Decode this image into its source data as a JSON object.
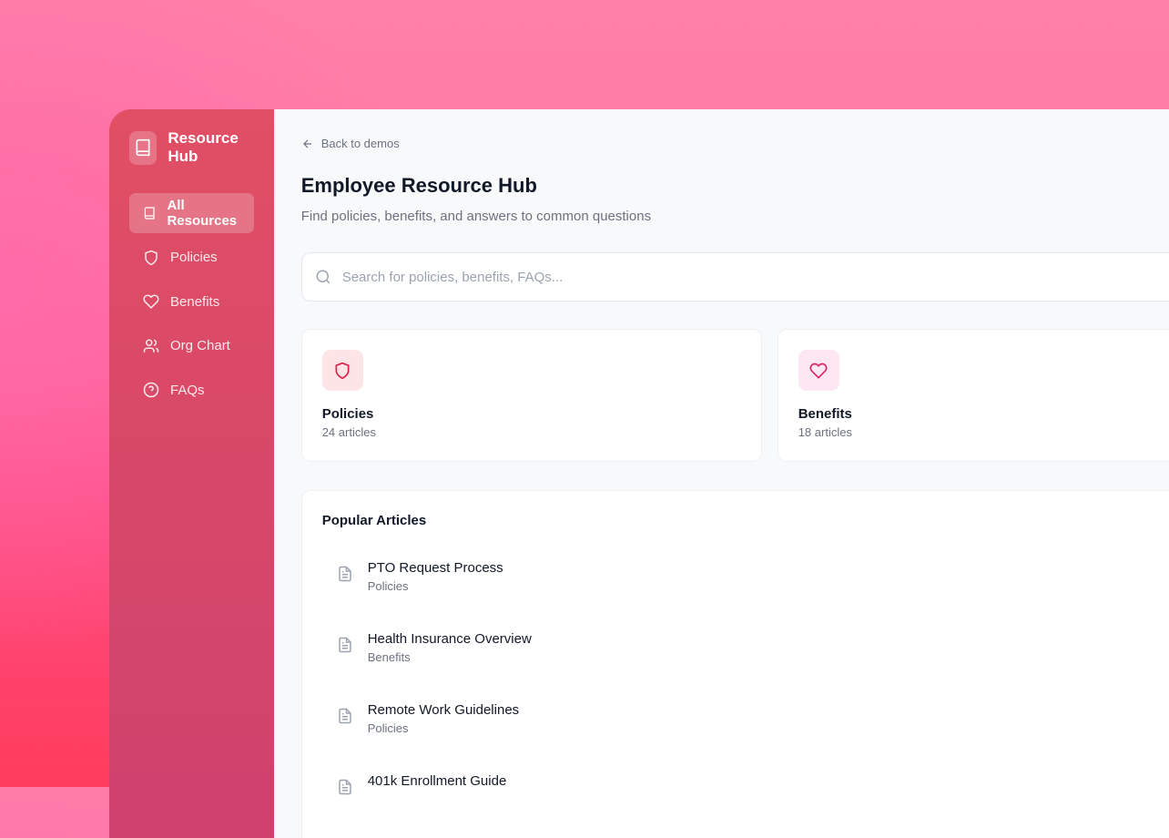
{
  "sidebar": {
    "brand": "Resource Hub",
    "items": [
      {
        "label": "All Resources",
        "icon": "book-icon",
        "active": true
      },
      {
        "label": "Policies",
        "icon": "shield-icon"
      },
      {
        "label": "Benefits",
        "icon": "heart-icon"
      },
      {
        "label": "Org Chart",
        "icon": "users-icon"
      },
      {
        "label": "FAQs",
        "icon": "help-circle-icon"
      }
    ]
  },
  "main": {
    "back": "Back to demos",
    "title": "Employee Resource Hub",
    "subtitle": "Find policies, benefits, and answers to common questions",
    "search_placeholder": "Search for policies, benefits, FAQs...",
    "cards": [
      {
        "title": "Policies",
        "count": "24 articles",
        "color": "#e11d48",
        "bg": "#fde4e6"
      },
      {
        "title": "Benefits",
        "count": "18 articles",
        "color": "#db2763",
        "bg": "#fce7f3"
      }
    ],
    "popular_title": "Popular Articles",
    "articles": [
      {
        "title": "PTO Request Process",
        "category": "Policies"
      },
      {
        "title": "Health Insurance Overview",
        "category": "Benefits"
      },
      {
        "title": "Remote Work Guidelines",
        "category": "Policies"
      },
      {
        "title": "401k Enrollment Guide",
        "category": ""
      }
    ]
  }
}
